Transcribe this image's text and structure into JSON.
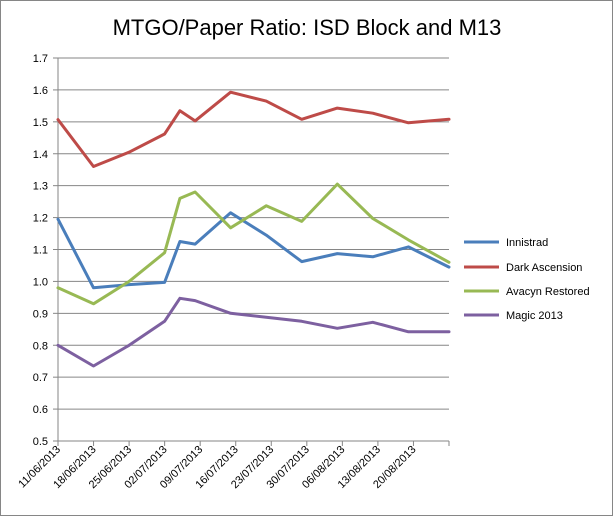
{
  "chart_data": {
    "type": "line",
    "title": "MTGO/Paper Ratio: ISD Block and M13",
    "xlabel": "",
    "ylabel": "",
    "ylim": [
      0.5,
      1.7
    ],
    "yticks": [
      "0.5",
      "0.6",
      "0.7",
      "0.8",
      "0.9",
      "1.0",
      "1.1",
      "1.2",
      "1.3",
      "1.4",
      "1.5",
      "1.6",
      "1.7"
    ],
    "x_range": [
      "2013-06-11",
      "2013-08-27"
    ],
    "x_tick_labels": [
      "11/06/2013",
      "18/06/2013",
      "25/06/2013",
      "02/07/2013",
      "09/07/2013",
      "16/07/2013",
      "23/07/2013",
      "30/07/2013",
      "06/08/2013",
      "13/08/2013",
      "20/08/2013"
    ],
    "grid": "horizontal",
    "legend_position": "right",
    "series": [
      {
        "name": "Innistrad",
        "color": "#4a7ebb",
        "points": [
          [
            "2013-06-11",
            1.195
          ],
          [
            "2013-06-18",
            0.98
          ],
          [
            "2013-06-25",
            0.99
          ],
          [
            "2013-07-02",
            0.997
          ],
          [
            "2013-07-05",
            1.125
          ],
          [
            "2013-07-08",
            1.117
          ],
          [
            "2013-07-15",
            1.215
          ],
          [
            "2013-07-22",
            1.145
          ],
          [
            "2013-07-29",
            1.062
          ],
          [
            "2013-08-05",
            1.087
          ],
          [
            "2013-08-12",
            1.077
          ],
          [
            "2013-08-19",
            1.108
          ],
          [
            "2013-08-27",
            1.045
          ]
        ]
      },
      {
        "name": "Dark Ascension",
        "color": "#be4b48",
        "points": [
          [
            "2013-06-11",
            1.507
          ],
          [
            "2013-06-18",
            1.36
          ],
          [
            "2013-06-25",
            1.405
          ],
          [
            "2013-07-02",
            1.462
          ],
          [
            "2013-07-05",
            1.535
          ],
          [
            "2013-07-08",
            1.503
          ],
          [
            "2013-07-15",
            1.593
          ],
          [
            "2013-07-22",
            1.565
          ],
          [
            "2013-07-29",
            1.508
          ],
          [
            "2013-08-05",
            1.543
          ],
          [
            "2013-08-12",
            1.527
          ],
          [
            "2013-08-19",
            1.497
          ],
          [
            "2013-08-27",
            1.508
          ]
        ]
      },
      {
        "name": "Avacyn Restored",
        "color": "#98b954",
        "points": [
          [
            "2013-06-11",
            0.98
          ],
          [
            "2013-06-18",
            0.93
          ],
          [
            "2013-06-25",
            1.0
          ],
          [
            "2013-07-02",
            1.09
          ],
          [
            "2013-07-05",
            1.26
          ],
          [
            "2013-07-08",
            1.28
          ],
          [
            "2013-07-15",
            1.168
          ],
          [
            "2013-07-22",
            1.237
          ],
          [
            "2013-07-29",
            1.188
          ],
          [
            "2013-08-05",
            1.305
          ],
          [
            "2013-08-12",
            1.197
          ],
          [
            "2013-08-19",
            1.13
          ],
          [
            "2013-08-27",
            1.06
          ]
        ]
      },
      {
        "name": "Magic 2013",
        "color": "#7d60a0",
        "points": [
          [
            "2013-06-11",
            0.8
          ],
          [
            "2013-06-18",
            0.735
          ],
          [
            "2013-06-25",
            0.8
          ],
          [
            "2013-07-02",
            0.875
          ],
          [
            "2013-07-05",
            0.947
          ],
          [
            "2013-07-08",
            0.94
          ],
          [
            "2013-07-15",
            0.9
          ],
          [
            "2013-07-22",
            0.888
          ],
          [
            "2013-07-29",
            0.875
          ],
          [
            "2013-08-05",
            0.853
          ],
          [
            "2013-08-12",
            0.872
          ],
          [
            "2013-08-19",
            0.842
          ],
          [
            "2013-08-27",
            0.842
          ]
        ]
      }
    ]
  }
}
